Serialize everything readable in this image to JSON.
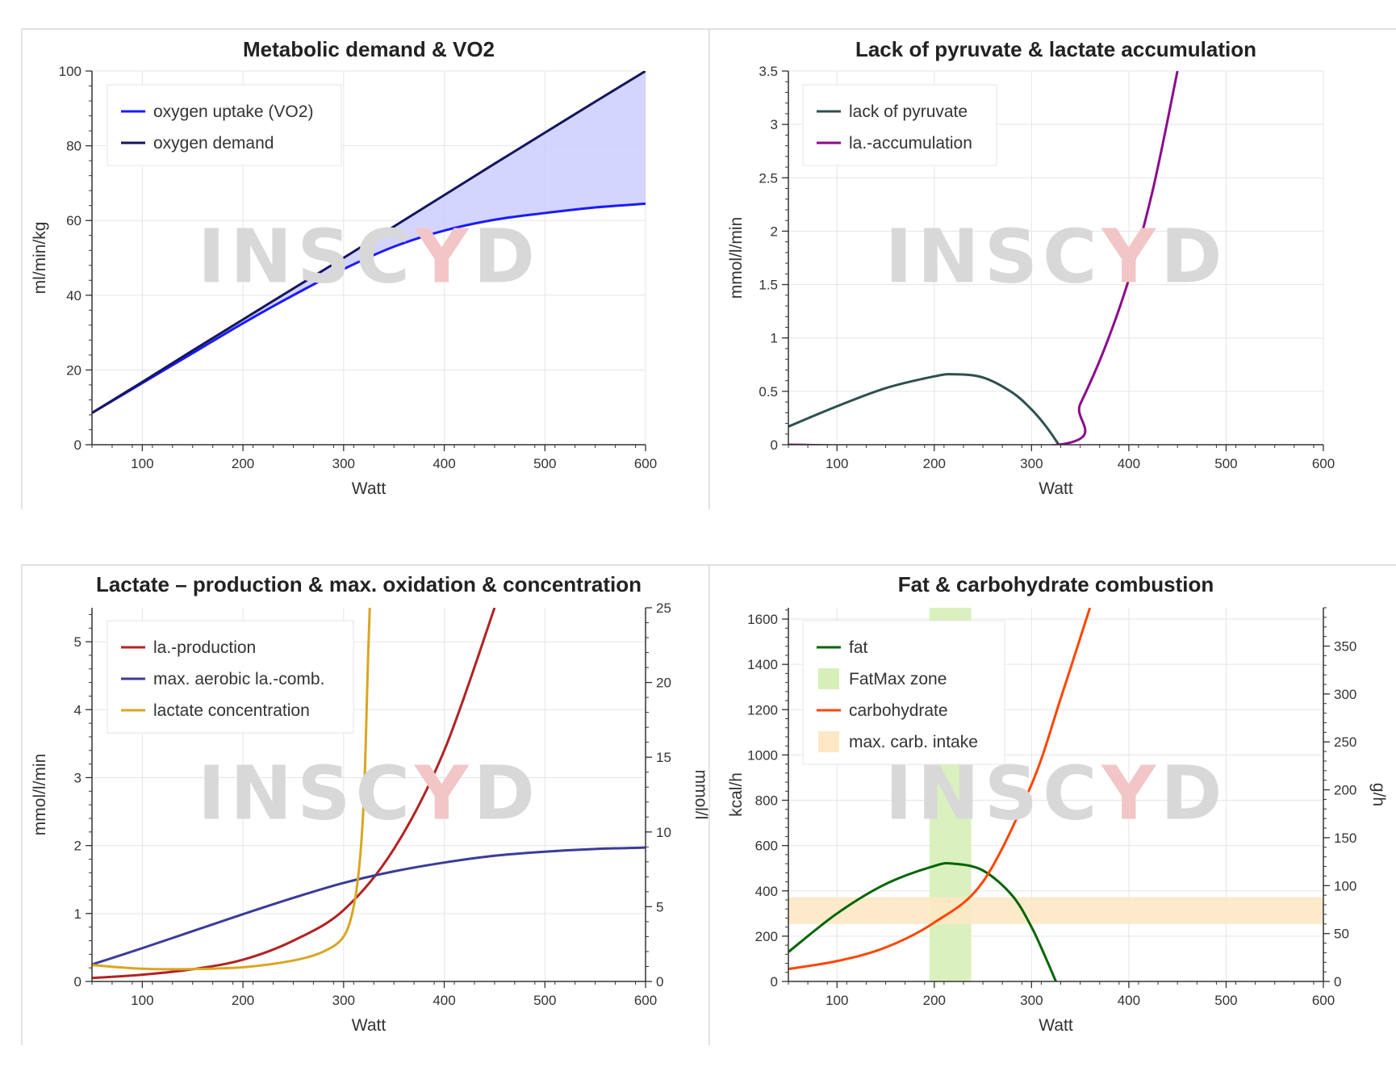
{
  "watermark": {
    "pre": "INSC",
    "accent": "Y",
    "post": "D"
  },
  "chart_data": [
    {
      "type": "area",
      "title": "Metabolic demand & VO2",
      "xlabel": "Watt",
      "ylabel": "ml/min/kg",
      "xlim": [
        50,
        600
      ],
      "ylim": [
        0,
        100
      ],
      "xticks": [
        100,
        200,
        300,
        400,
        500,
        600
      ],
      "yticks": [
        0,
        20,
        40,
        60,
        80,
        100
      ],
      "legend": "top-left",
      "grid": true,
      "series": [
        {
          "name": "oxygen uptake (VO2)",
          "color": "#1a1aff",
          "x": [
            50,
            100,
            150,
            200,
            250,
            300,
            350,
            400,
            450,
            500,
            550,
            600
          ],
          "y": [
            8.5,
            16.5,
            24.5,
            32.5,
            40,
            47,
            53,
            57.3,
            60.2,
            62,
            63.5,
            64.5
          ]
        },
        {
          "name": "oxygen demand",
          "color": "#16165e",
          "x": [
            50,
            100,
            150,
            200,
            250,
            300,
            350,
            400,
            450,
            500,
            550,
            600
          ],
          "y": [
            8.5,
            16.8,
            25.2,
            33.5,
            41.8,
            50,
            58.4,
            66.8,
            75.2,
            83.5,
            91.8,
            100
          ]
        }
      ],
      "fill_between": {
        "upper": "oxygen demand",
        "lower": "oxygen uptake (VO2)",
        "color": "#c9cbff"
      }
    },
    {
      "type": "line",
      "title": "Lack of pyruvate & lactate accumulation",
      "xlabel": "Watt",
      "ylabel": "mmol/l/min",
      "xlim": [
        50,
        600
      ],
      "ylim": [
        0,
        3.5
      ],
      "xticks": [
        100,
        200,
        300,
        400,
        500,
        600
      ],
      "yticks": [
        0,
        0.5,
        1,
        1.5,
        2,
        2.5,
        3,
        3.5
      ],
      "ytick_labels": [
        "0",
        "0.5",
        "1",
        "1.5",
        "2",
        "2.5",
        "3",
        "3.5"
      ],
      "legend": "top-left",
      "grid": true,
      "series": [
        {
          "name": "lack of pyruvate",
          "color": "#2f4f4f",
          "x": [
            50,
            100,
            150,
            200,
            220,
            250,
            280,
            300,
            315,
            328
          ],
          "y": [
            0.17,
            0.36,
            0.53,
            0.64,
            0.66,
            0.63,
            0.49,
            0.33,
            0.17,
            0
          ]
        },
        {
          "name": "la.-accumulation",
          "color": "#8b0a8b",
          "x": [
            50,
            328,
            350,
            375,
            400,
            425,
            450
          ],
          "y": [
            0,
            0,
            0.38,
            0.9,
            1.55,
            2.4,
            3.5
          ]
        }
      ]
    },
    {
      "type": "line",
      "title": "Lactate – production & max. oxidation & concentration",
      "xlabel": "Watt",
      "ylabel": "mmol/l/min",
      "y2label": "mmol/l",
      "xlim": [
        50,
        600
      ],
      "ylim": [
        0,
        5.5
      ],
      "y2lim": [
        0,
        25
      ],
      "xticks": [
        100,
        200,
        300,
        400,
        500,
        600
      ],
      "yticks": [
        0,
        1,
        2,
        3,
        4,
        5
      ],
      "y2ticks": [
        0,
        5,
        10,
        15,
        20,
        25
      ],
      "legend": "top-left",
      "grid": true,
      "series": [
        {
          "name": "la.-production",
          "color": "#b22222",
          "axis": "left",
          "x": [
            50,
            100,
            150,
            200,
            250,
            300,
            350,
            400,
            450
          ],
          "y": [
            0.05,
            0.1,
            0.18,
            0.32,
            0.6,
            1.05,
            1.95,
            3.4,
            5.5
          ]
        },
        {
          "name": "max. aerobic la.-comb.",
          "color": "#3b3b9a",
          "axis": "left",
          "x": [
            50,
            100,
            150,
            200,
            250,
            300,
            350,
            400,
            450,
            500,
            550,
            600
          ],
          "y": [
            0.25,
            0.49,
            0.74,
            0.99,
            1.23,
            1.45,
            1.62,
            1.75,
            1.85,
            1.91,
            1.95,
            1.97
          ]
        },
        {
          "name": "lactate concentration",
          "color": "#daa520",
          "axis": "right",
          "x": [
            50,
            100,
            150,
            200,
            250,
            280,
            300,
            310,
            316,
            320,
            322,
            324,
            326
          ],
          "y": [
            1.1,
            0.85,
            0.83,
            0.95,
            1.4,
            2.0,
            3.0,
            5.0,
            8.0,
            12.0,
            16.0,
            21.0,
            25.0
          ]
        }
      ]
    },
    {
      "type": "line",
      "title": "Fat & carbohydrate combustion",
      "xlabel": "Watt",
      "ylabel": "kcal/h",
      "y2label": "g/h",
      "xlim": [
        50,
        600
      ],
      "ylim": [
        0,
        1650
      ],
      "y2lim": [
        0,
        390
      ],
      "xticks": [
        100,
        200,
        300,
        400,
        500,
        600
      ],
      "yticks": [
        0,
        200,
        400,
        600,
        800,
        1000,
        1200,
        1400,
        1600
      ],
      "y2ticks": [
        0,
        50,
        100,
        150,
        200,
        250,
        300,
        350
      ],
      "legend": "top-left",
      "grid": true,
      "series": [
        {
          "name": "fat",
          "color": "#006400",
          "axis": "left",
          "x": [
            50,
            100,
            150,
            200,
            220,
            250,
            280,
            300,
            315,
            325
          ],
          "y": [
            130,
            300,
            430,
            510,
            520,
            490,
            380,
            240,
            100,
            0
          ]
        },
        {
          "name": "carbohydrate",
          "color": "#ff4500",
          "axis": "left",
          "x": [
            50,
            100,
            150,
            200,
            250,
            300,
            330,
            360
          ],
          "y": [
            55,
            90,
            150,
            260,
            440,
            870,
            1250,
            1650
          ]
        }
      ],
      "bands": [
        {
          "name": "FatMax zone",
          "color": "#d6efb8",
          "orientation": "vertical",
          "range": [
            195,
            238
          ]
        },
        {
          "name": "max. carb. intake",
          "color": "#fce8c4",
          "orientation": "horizontal",
          "axis": "right",
          "range": [
            60,
            88
          ]
        }
      ]
    }
  ]
}
